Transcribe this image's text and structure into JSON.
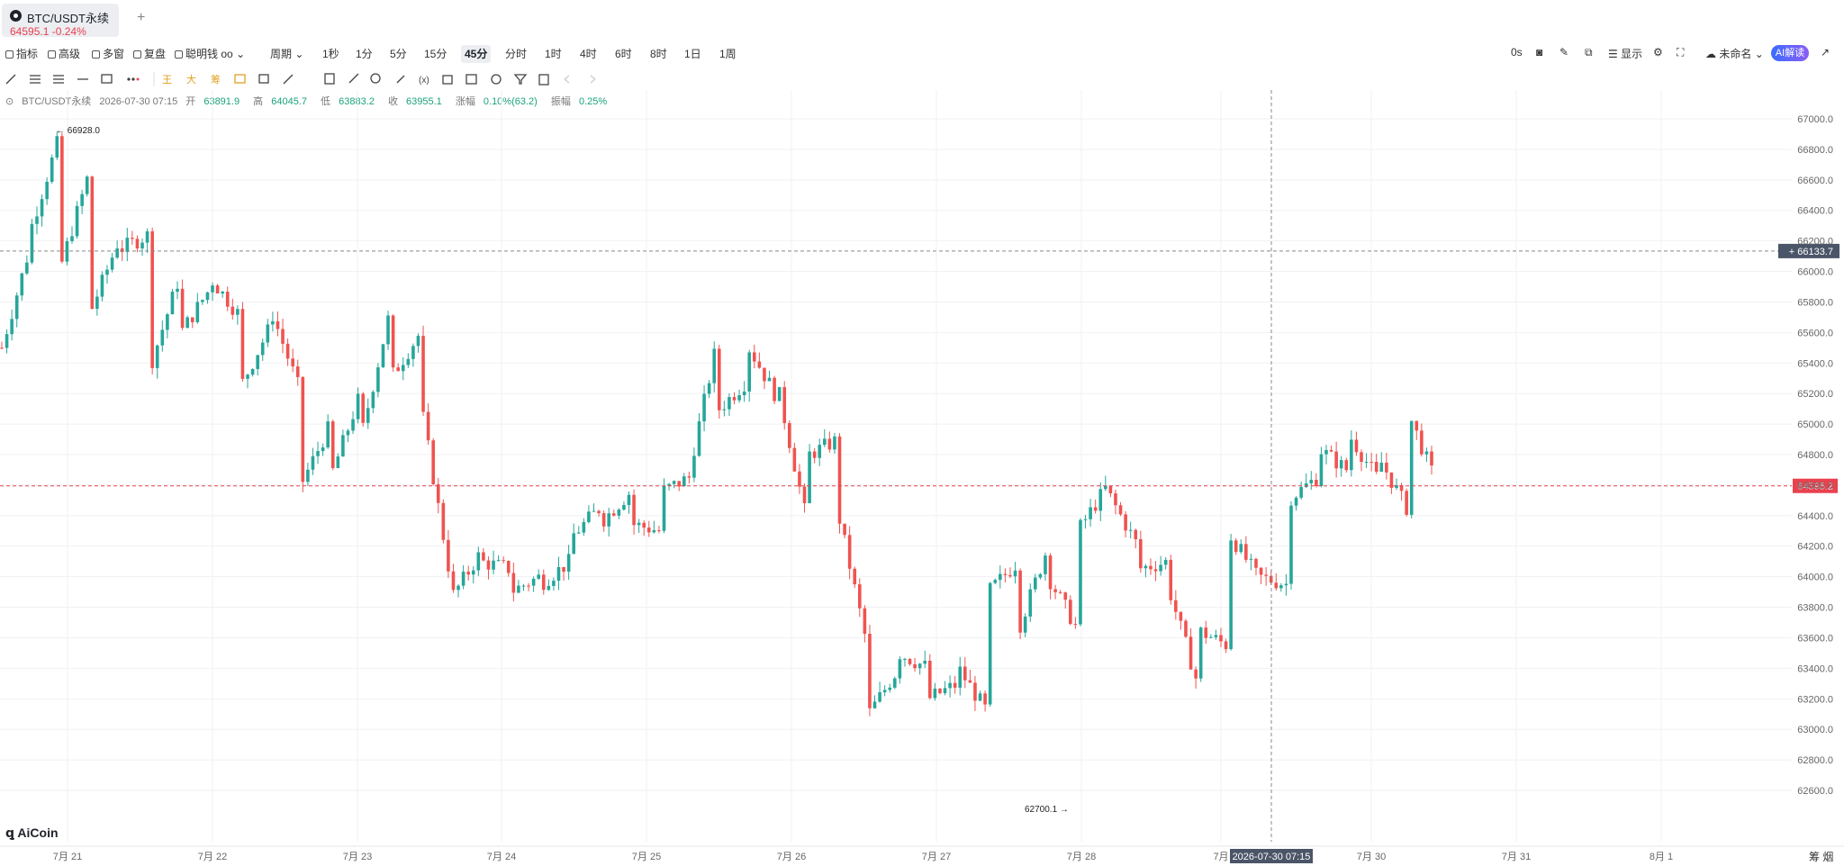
{
  "tab": {
    "title": "BTC/USDT永续",
    "price": "64595.1",
    "change": "-0.24%"
  },
  "toolbar": {
    "indicators": "指标",
    "advanced": "高级",
    "multi_window": "多窗",
    "replay": "复盘",
    "smart_money": "聪明钱",
    "period": "周期",
    "periods": [
      "1秒",
      "1分",
      "5分",
      "15分",
      "45分",
      "分时",
      "1时",
      "4时",
      "6时",
      "8时",
      "1日",
      "1周"
    ],
    "active_period": "45分",
    "countdown": "0s",
    "display": "显示",
    "unnamed": "未命名",
    "ai_interpret": "AI解读"
  },
  "info": {
    "symbol": "BTC/USDT永续",
    "datetime": "2026-07-30 07:15",
    "open_label": "开",
    "open": "63891.9",
    "high_label": "高",
    "high": "64045.7",
    "low_label": "低",
    "low": "63883.2",
    "close_label": "收",
    "close": "63955.1",
    "change_label": "涨幅",
    "change": "0.10%(63.2)",
    "amp_label": "振幅",
    "amp": "0.25%"
  },
  "logo": "AiCoin",
  "corner_label": "筹 烟",
  "chart_data": {
    "type": "candlestick",
    "title": "",
    "ylim": [
      62600,
      67000
    ],
    "y_ticks": [
      "62600.0",
      "62800.0",
      "63000.0",
      "63200.0",
      "63400.0",
      "63600.0",
      "63800.0",
      "64000.0",
      "64200.0",
      "64400.0",
      "64600.0",
      "64800.0",
      "65000.0",
      "65200.0",
      "65400.0",
      "65600.0",
      "65800.0",
      "66000.0",
      "66200.0",
      "66400.0",
      "66600.0",
      "66800.0",
      "67000.0"
    ],
    "x_ticks": [
      "7月 21",
      "7月 22",
      "7月 23",
      "7月 24",
      "7月 25",
      "7月 26",
      "7月 27",
      "7月 28",
      "7月",
      "7月 30",
      "7月 31",
      "8月 1"
    ],
    "crosshair": {
      "price": "66133.7",
      "time": "2026-07-30 07:15"
    },
    "last_price": "64595.2",
    "high_marker": "66928.0",
    "low_marker": "62700.1",
    "colors": {
      "up": "#26a69a",
      "down": "#ef5350",
      "last": "#e8414f",
      "crosshair_label": "#4a5568"
    },
    "path": [
      [
        65500,
        66200
      ],
      [
        66300,
        66930
      ],
      [
        66050,
        66700
      ],
      [
        65750,
        66250
      ],
      [
        66150,
        66250
      ],
      [
        65400,
        66000
      ],
      [
        65600,
        65900
      ],
      [
        65950,
        65700
      ],
      [
        65250,
        65650
      ],
      [
        65750,
        65200
      ],
      [
        64600,
        65000
      ],
      [
        64650,
        65200
      ],
      [
        64900,
        65750
      ],
      [
        65300,
        65600
      ],
      [
        65150,
        64000
      ],
      [
        63850,
        64150
      ],
      [
        64100,
        64050
      ],
      [
        63900,
        64000
      ],
      [
        63950,
        64100
      ],
      [
        64250,
        64450
      ],
      [
        64350,
        64550
      ],
      [
        64350,
        64300
      ],
      [
        64550,
        64650
      ],
      [
        64700,
        65600
      ],
      [
        65100,
        65300
      ],
      [
        65500,
        65150
      ],
      [
        65200,
        64300
      ],
      [
        64800,
        64900
      ],
      [
        64400,
        63500
      ],
      [
        63100,
        63400
      ],
      [
        63500,
        63400
      ],
      [
        63200,
        63300
      ],
      [
        63400,
        63100
      ],
      [
        63900,
        64100
      ],
      [
        63650,
        64200
      ],
      [
        64000,
        63650
      ],
      [
        64300,
        64600
      ],
      [
        64550,
        64200
      ],
      [
        64050,
        64100
      ],
      [
        63950,
        63300
      ],
      [
        63650,
        63550
      ],
      [
        64300,
        64000
      ],
      [
        64000,
        63950
      ],
      [
        64500,
        64650
      ],
      [
        64850,
        64700
      ],
      [
        64950,
        64650
      ],
      [
        64800,
        64450
      ],
      [
        65100,
        64600
      ]
    ]
  }
}
